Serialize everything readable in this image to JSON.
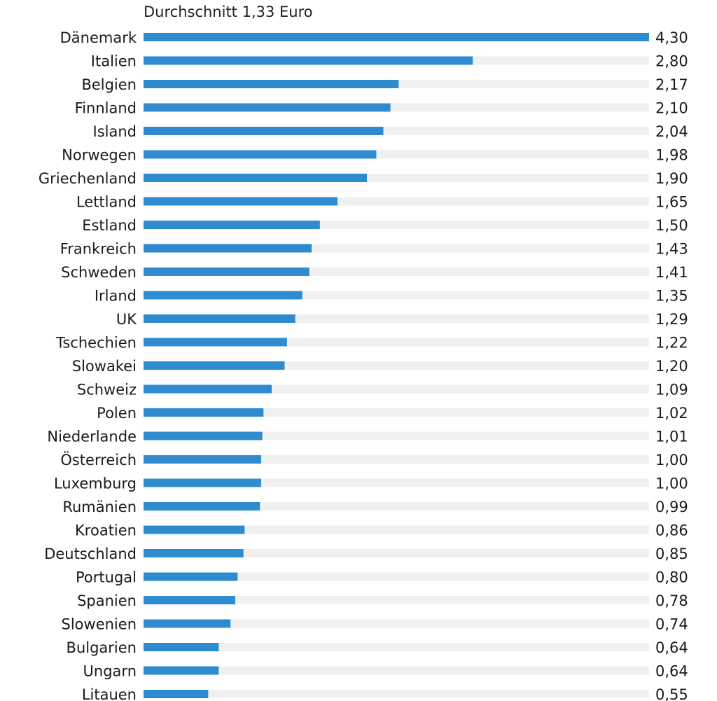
{
  "chart_data": {
    "type": "bar",
    "orientation": "horizontal",
    "subtitle": "Durchschnitt 1,33 Euro",
    "categories": [
      "Dänemark",
      "Italien",
      "Belgien",
      "Finnland",
      "Island",
      "Norwegen",
      "Griechenland",
      "Lettland",
      "Estland",
      "Frankreich",
      "Schweden",
      "Irland",
      "UK",
      "Tschechien",
      "Slowakei",
      "Schweiz",
      "Polen",
      "Niederlande",
      "Österreich",
      "Luxemburg",
      "Rumänien",
      "Kroatien",
      "Deutschland",
      "Portugal",
      "Spanien",
      "Slowenien",
      "Bulgarien",
      "Ungarn",
      "Litauen"
    ],
    "values": [
      4.3,
      2.8,
      2.17,
      2.1,
      2.04,
      1.98,
      1.9,
      1.65,
      1.5,
      1.43,
      1.41,
      1.35,
      1.29,
      1.22,
      1.2,
      1.09,
      1.02,
      1.01,
      1.0,
      1.0,
      0.99,
      0.86,
      0.85,
      0.8,
      0.78,
      0.74,
      0.64,
      0.64,
      0.55
    ],
    "value_labels": [
      "4,30",
      "2,80",
      "2,17",
      "2,10",
      "2,04",
      "1,98",
      "1,90",
      "1,65",
      "1,50",
      "1,43",
      "1,41",
      "1,35",
      "1,29",
      "1,22",
      "1,20",
      "1,09",
      "1,02",
      "1,01",
      "1,00",
      "1,00",
      "0,99",
      "0,86",
      "0,85",
      "0,80",
      "0,78",
      "0,74",
      "0,64",
      "0,64",
      "0,55"
    ],
    "xlim": [
      0,
      4.3
    ],
    "bar_color": "#2e8bcf",
    "track_color": "#f0f0f0",
    "grid": false,
    "legend": "none"
  }
}
